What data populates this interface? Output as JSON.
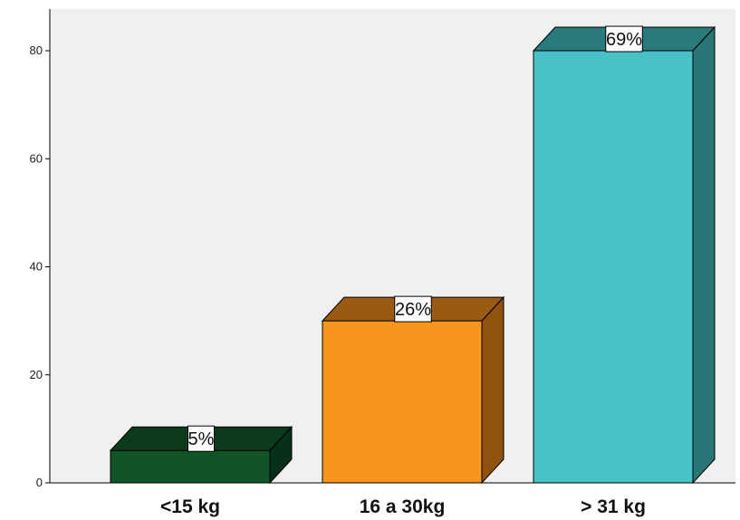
{
  "chart_data": {
    "type": "bar",
    "categories": [
      "<15 kg",
      "16 a 30kg",
      "> 31 kg"
    ],
    "values": [
      6,
      30,
      80
    ],
    "data_labels": [
      "5%",
      "26%",
      "69%"
    ],
    "ylim": [
      0,
      84
    ],
    "yticks": [
      0,
      20,
      40,
      60,
      80
    ],
    "ytick_labels": [
      "0",
      "20",
      "40",
      "60",
      "80"
    ],
    "grid": false,
    "style": "3d-bar",
    "colors": {
      "background": "#f0f0f0",
      "bars": [
        {
          "front": "#0f5327",
          "top": "#0b3a1c",
          "side": "#083019"
        },
        {
          "front": "#f7961e",
          "top": "#9b5a11",
          "side": "#8f530f"
        },
        {
          "front": "#48c2c6",
          "top": "#2a7a7b",
          "side": "#2a7575"
        }
      ]
    }
  }
}
